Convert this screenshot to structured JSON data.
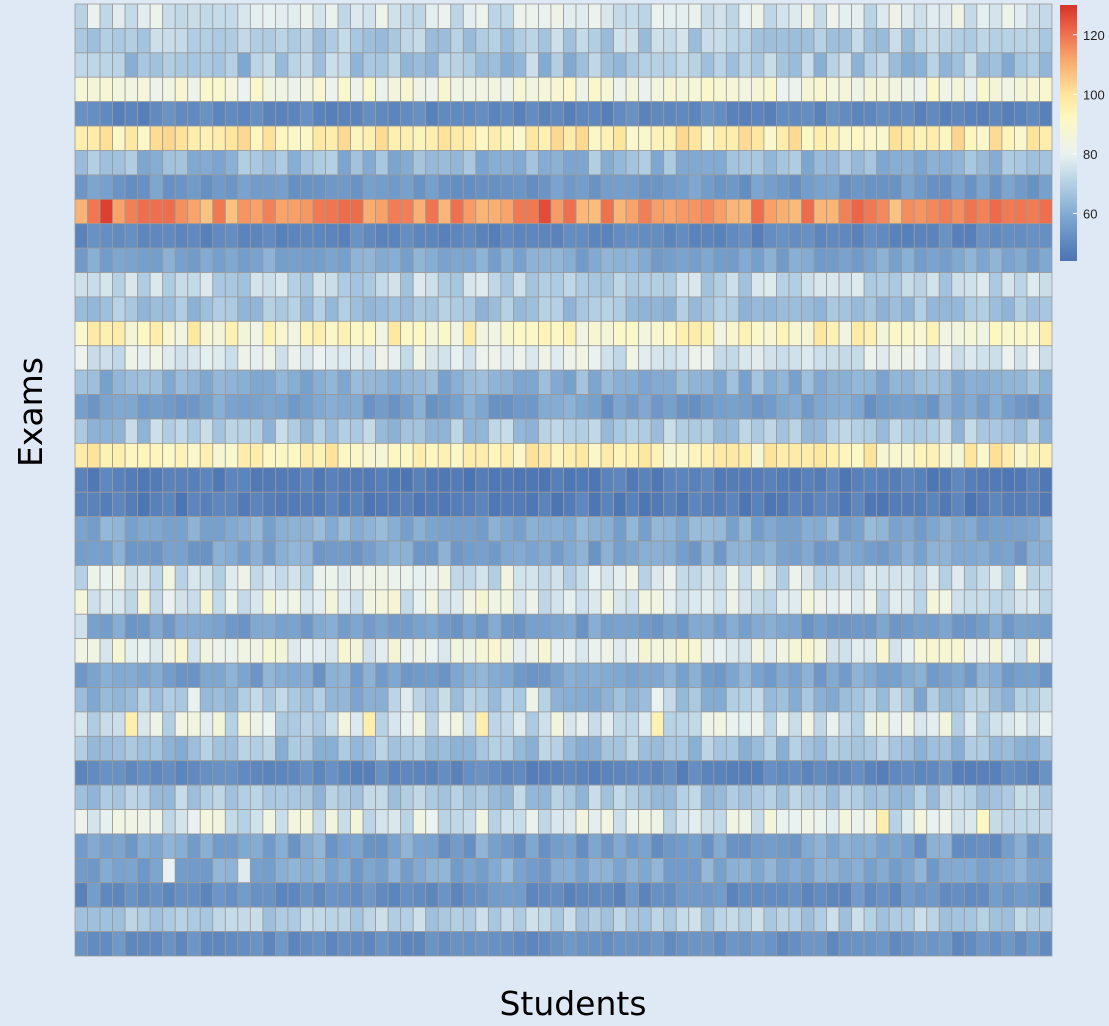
{
  "chart_data": {
    "type": "heatmap",
    "xlabel": "Students",
    "ylabel": "Exams",
    "n_rows": 39,
    "n_cols": 78,
    "value_range": [
      44,
      130
    ],
    "colorbar": {
      "ticks": [
        60,
        80,
        100,
        120
      ],
      "stops": [
        {
          "value": 44,
          "color": "#4b74b3"
        },
        {
          "value": 58,
          "color": "#7aa4cf"
        },
        {
          "value": 70,
          "color": "#b4d0e4"
        },
        {
          "value": 80,
          "color": "#eaf2f1"
        },
        {
          "value": 92,
          "color": "#fdf8c2"
        },
        {
          "value": 100,
          "color": "#fee59b"
        },
        {
          "value": 112,
          "color": "#f9a56b"
        },
        {
          "value": 122,
          "color": "#ec6548"
        },
        {
          "value": 130,
          "color": "#d63329"
        }
      ]
    },
    "row_means": [
      77,
      70,
      67,
      85,
      50,
      96,
      64,
      55,
      114,
      50,
      59,
      72,
      66,
      91,
      78,
      62,
      57,
      68,
      94,
      47,
      47,
      60,
      58,
      77,
      79,
      57,
      82,
      58,
      66,
      77,
      66,
      50,
      68,
      78,
      57,
      59,
      52,
      70,
      52
    ],
    "row_spread": [
      6,
      6,
      8,
      5,
      3,
      7,
      6,
      4,
      8,
      3,
      4,
      6,
      5,
      8,
      6,
      5,
      5,
      7,
      7,
      3,
      3,
      5,
      5,
      8,
      8,
      4,
      7,
      5,
      8,
      9,
      6,
      3,
      6,
      8,
      6,
      5,
      4,
      5,
      3
    ],
    "cell_overrides": {
      "8": {
        "2": 128,
        "37": 126,
        "42": 120,
        "62": 122
      },
      "25": {
        "0": 75
      },
      "28": {
        "9": 80,
        "26": 78,
        "36": 82,
        "46": 80
      },
      "29": {
        "4": 96,
        "23": 96,
        "32": 96,
        "46": 95
      },
      "33": {
        "64": 96,
        "72": 92
      },
      "35": {
        "7": 80,
        "13": 78
      },
      "34": {
        "73": 50
      }
    }
  }
}
